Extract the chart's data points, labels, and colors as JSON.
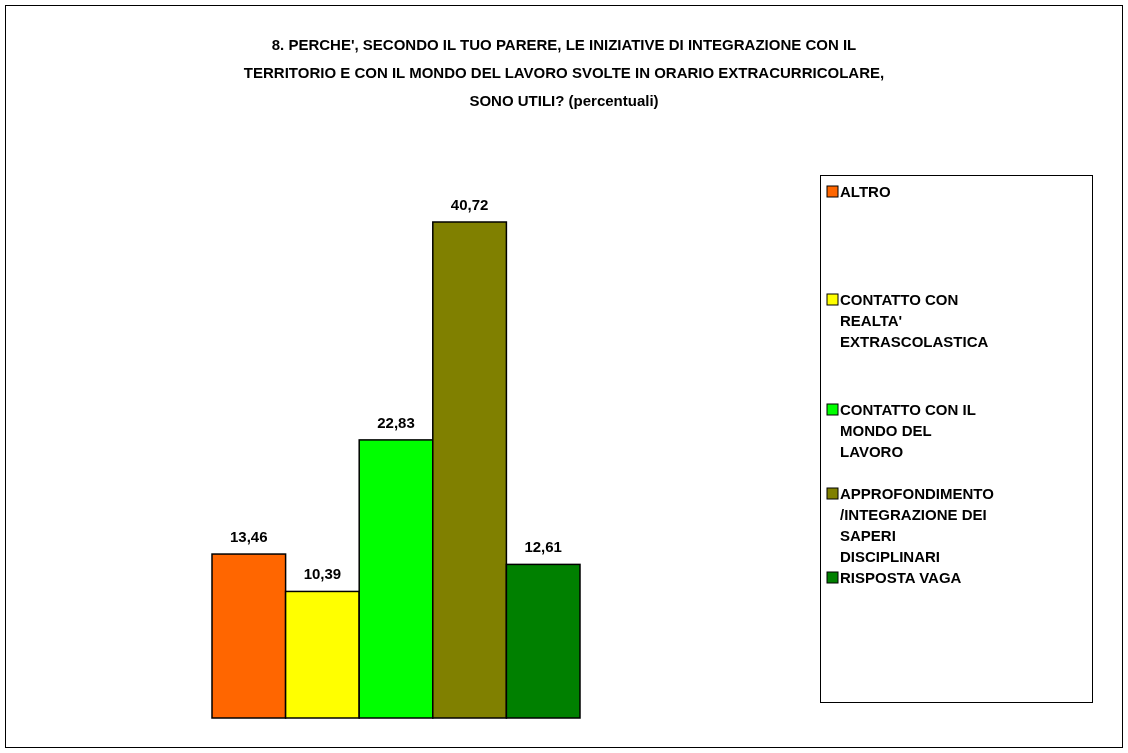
{
  "chart_data": {
    "type": "bar",
    "title": "8. PERCHE', SECONDO IL TUO PARERE, LE INIZIATIVE DI INTEGRAZIONE CON IL\nTERRITORIO E CON IL MONDO DEL LAVORO SVOLTE IN ORARIO EXTRACURRICOLARE,\nSONO UTILI?  (percentuali)",
    "categories": [
      null
    ],
    "series": [
      {
        "name": "ALTRO",
        "color": "#ff6600",
        "values": [
          13.46
        ],
        "value_labels": [
          "13,46"
        ]
      },
      {
        "name": "CONTATTO CON\nREALTA'\nEXTRASCOLASTICA",
        "color": "#ffff00",
        "values": [
          10.39
        ],
        "value_labels": [
          "10,39"
        ]
      },
      {
        "name": "CONTATTO CON IL\nMONDO DEL\nLAVORO",
        "color": "#00ff00",
        "values": [
          22.83
        ],
        "value_labels": [
          "22,83"
        ]
      },
      {
        "name": "APPROFONDIMENTO\n/INTEGRAZIONE DEI\nSAPERI\nDISCIPLINARI",
        "color": "#808000",
        "values": [
          40.72
        ],
        "value_labels": [
          "40,72"
        ]
      },
      {
        "name": "RISPOSTA VAGA",
        "color": "#008000",
        "values": [
          12.61
        ],
        "value_labels": [
          "12,61"
        ]
      }
    ],
    "legend": "right"
  }
}
